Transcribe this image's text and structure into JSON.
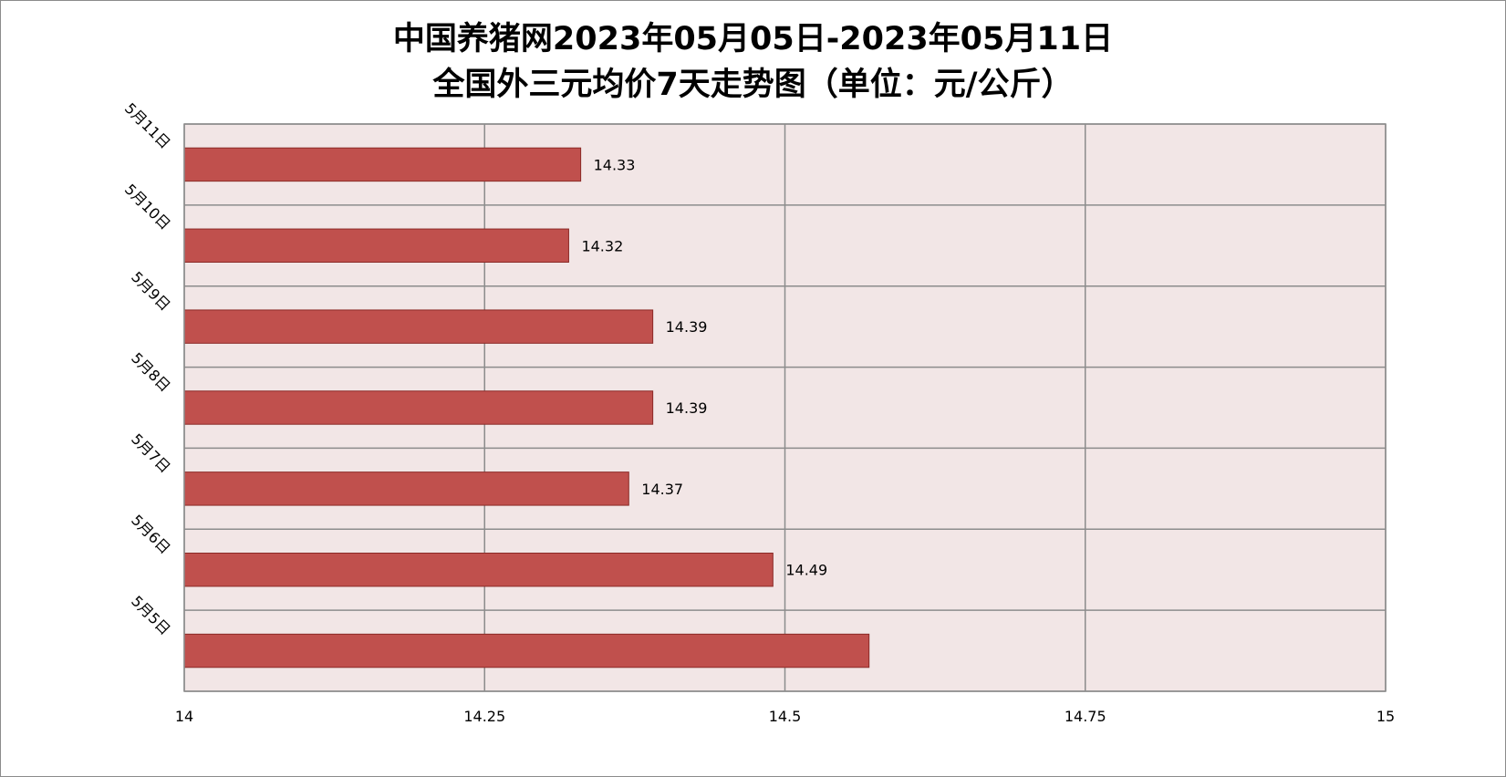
{
  "chart_data": {
    "type": "bar",
    "orientation": "horizontal",
    "title_line1": "中国养猪网2023年05月05日-2023年05月11日",
    "title_line2": "全国外三元均价7天走势图（单位：元/公斤）",
    "categories": [
      "5月11日",
      "5月10日",
      "5月9日",
      "5月8日",
      "5月7日",
      "5月6日",
      "5月5日"
    ],
    "values": [
      14.33,
      14.32,
      14.39,
      14.39,
      14.37,
      14.49,
      14.57
    ],
    "data_labels": [
      "14.33",
      "14.32",
      "14.39",
      "14.39",
      "14.37",
      "14.49",
      ""
    ],
    "xlim": [
      14,
      15
    ],
    "x_ticks": [
      14,
      14.25,
      14.5,
      14.75,
      15
    ],
    "x_tick_labels": [
      "14",
      "14.25",
      "14.5",
      "14.75",
      "15"
    ],
    "grid": true,
    "colors": {
      "bar_fill": "#c0504d",
      "bar_stroke": "#8b2a27",
      "plot_background": "#f2e6e6",
      "grid": "#8c8c8c"
    }
  }
}
